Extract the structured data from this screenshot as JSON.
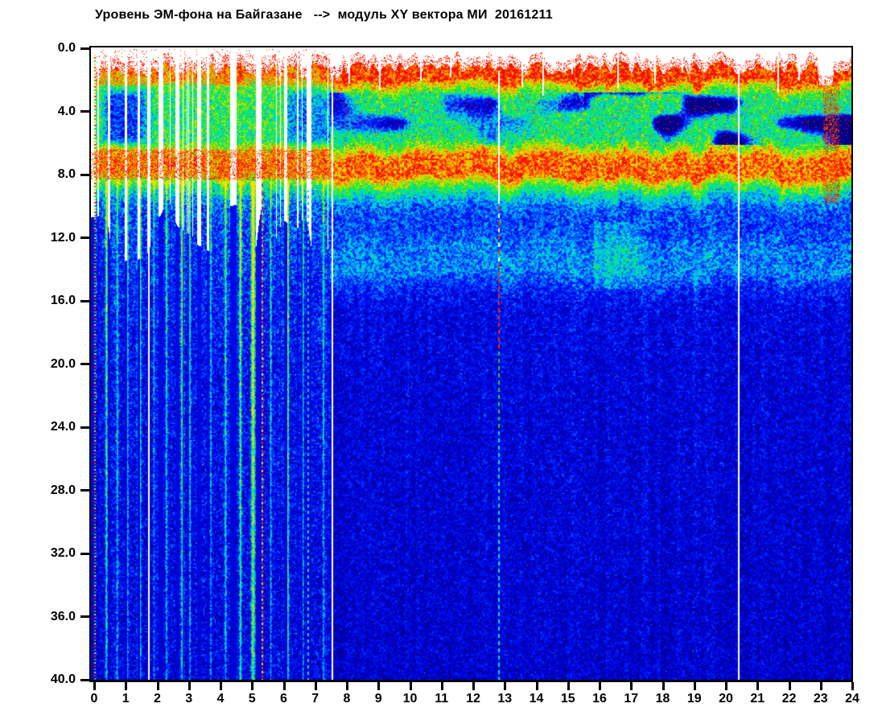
{
  "title": {
    "text": "Уровень ЭМ-фона на Байгазане   -->  модуль XY вектора МИ  20161211",
    "color": "#000000"
  },
  "axes": {
    "x": {
      "tick_labels": [
        "0",
        "1",
        "2",
        "3",
        "4",
        "5",
        "6",
        "7",
        "8",
        "9",
        "10",
        "11",
        "12",
        "13",
        "14",
        "15",
        "16",
        "17",
        "18",
        "19",
        "20",
        "21",
        "22",
        "23",
        "24"
      ],
      "min": 0,
      "max": 24
    },
    "y": {
      "tick_labels": [
        "0.0",
        "4.0",
        "8.0",
        "12.0",
        "16.0",
        "20.0",
        "24.0",
        "28.0",
        "32.0",
        "36.0",
        "40.0"
      ],
      "min": 0,
      "max": 40
    }
  },
  "chart_data": {
    "type": "heatmap",
    "title": "Уровень ЭМ-фона на Байгазане  -->  модуль XY вектора МИ  20161211",
    "date": "20161211",
    "x_range_hours": [
      0,
      24
    ],
    "y_range": [
      0,
      40
    ],
    "background": "#ffffff",
    "frame_color": "#000000",
    "colormap_stops": [
      [
        0.0,
        0,
        0,
        130
      ],
      [
        0.15,
        0,
        0,
        200
      ],
      [
        0.28,
        0,
        20,
        255
      ],
      [
        0.4,
        0,
        140,
        255
      ],
      [
        0.48,
        0,
        220,
        230
      ],
      [
        0.56,
        0,
        230,
        120
      ],
      [
        0.64,
        50,
        230,
        30
      ],
      [
        0.72,
        180,
        235,
        0
      ],
      [
        0.78,
        255,
        220,
        0
      ],
      [
        0.84,
        255,
        140,
        0
      ],
      [
        0.92,
        255,
        40,
        0
      ],
      [
        1.0,
        230,
        0,
        0
      ]
    ],
    "profile_continuous": [
      [
        0.75,
        0.93
      ],
      [
        2.0,
        0.92
      ],
      [
        2.6,
        0.7
      ],
      [
        3.1,
        0.58
      ],
      [
        5.7,
        0.56
      ],
      [
        6.3,
        0.7
      ],
      [
        6.9,
        0.87
      ],
      [
        8.1,
        0.88
      ],
      [
        8.7,
        0.66
      ],
      [
        9.4,
        0.48
      ],
      [
        10.3,
        0.34
      ],
      [
        11.6,
        0.32
      ],
      [
        12.6,
        0.385
      ],
      [
        14.2,
        0.4
      ],
      [
        15.2,
        0.28
      ],
      [
        16.5,
        0.21
      ],
      [
        22.0,
        0.185
      ],
      [
        40.0,
        0.16
      ]
    ],
    "profile_burst": [
      [
        0.85,
        0.88
      ],
      [
        1.9,
        0.8
      ],
      [
        2.5,
        0.63
      ],
      [
        4.0,
        0.58
      ],
      [
        5.9,
        0.6
      ],
      [
        6.5,
        0.78
      ],
      [
        7.5,
        0.85
      ],
      [
        8.2,
        0.74
      ],
      [
        8.9,
        0.55
      ],
      [
        9.6,
        0.4
      ],
      [
        10.6,
        0.33
      ],
      [
        12.5,
        0.3
      ],
      [
        15.0,
        0.27
      ],
      [
        20.0,
        0.235
      ],
      [
        30.0,
        0.21
      ],
      [
        40.0,
        0.195
      ]
    ],
    "burst_region_end_hour": 7.45,
    "burst_intervals": [
      [
        0.05,
        0.42
      ],
      [
        0.5,
        0.95
      ],
      [
        1.02,
        1.38
      ],
      [
        1.44,
        1.68
      ],
      [
        1.78,
        2.02
      ],
      [
        2.18,
        2.55
      ],
      [
        2.68,
        3.25
      ],
      [
        3.38,
        3.55
      ],
      [
        3.62,
        4.3
      ],
      [
        4.5,
        5.1
      ],
      [
        5.28,
        6.0
      ],
      [
        6.1,
        6.72
      ],
      [
        6.85,
        7.45
      ]
    ],
    "deep_streaks": [
      [
        0.38,
        0.45,
        1.6
      ],
      [
        0.72,
        0.28,
        1.2
      ],
      [
        1.05,
        0.3,
        1.2
      ],
      [
        1.42,
        0.52,
        2.6
      ],
      [
        1.88,
        0.25,
        1.2
      ],
      [
        2.28,
        0.34,
        1.4
      ],
      [
        2.78,
        0.48,
        2.0
      ],
      [
        3.02,
        0.36,
        1.3
      ],
      [
        3.68,
        0.28,
        1.2
      ],
      [
        4.15,
        0.34,
        1.5
      ],
      [
        4.62,
        0.47,
        1.6
      ],
      [
        5.02,
        0.62,
        2.8
      ],
      [
        5.58,
        0.32,
        1.2
      ],
      [
        6.12,
        0.46,
        1.6
      ],
      [
        6.6,
        0.33,
        1.2
      ],
      [
        7.25,
        0.28,
        1.2
      ]
    ],
    "vertical_lines": [
      {
        "name": "gap-line",
        "t": 1.72,
        "f0": 0.9,
        "width": 2,
        "color": "#ffffff"
      },
      {
        "name": "gap-line",
        "t": 7.55,
        "f0": 1.6,
        "width": 2,
        "color": "#ffffff"
      },
      {
        "name": "gap-line",
        "t": 20.42,
        "f0": 1.2,
        "width": 2,
        "color": "#ffffff"
      },
      {
        "name": "dotted-line",
        "t": 5.33,
        "f0": 7.9,
        "width": 2,
        "dash": [
          3,
          2
        ],
        "cycle": [
          "#ff2200",
          "#ffd000"
        ]
      },
      {
        "name": "dashed-line",
        "t": 6.78,
        "f0": 9.0,
        "width": 2,
        "dash": [
          4,
          4
        ],
        "palette": [
          [
            9.0,
            "#22dd22"
          ],
          [
            28.0,
            "#00cccc"
          ],
          [
            40.0,
            "#00e0e0"
          ]
        ]
      },
      {
        "name": "dashed-line",
        "t": 12.82,
        "f0": 1.4,
        "width": 2,
        "solid_white_to": 9.8,
        "dash": [
          5,
          4
        ],
        "alt_below_f": 13.5,
        "palette": [
          [
            9.8,
            "#ff4444"
          ],
          [
            19.0,
            "#ff2200"
          ],
          [
            24.0,
            "#22cc22"
          ],
          [
            40.0,
            "#00dddd"
          ]
        ]
      },
      {
        "name": "edge-dotted",
        "t": 0.015,
        "f0": 0.4,
        "width": 2,
        "dash": [
          2,
          2
        ],
        "cycle": [
          "#ff2200",
          "#22cc00",
          "#ffcc00"
        ]
      }
    ],
    "top_white_slits": [
      [
        8.05,
        2.2
      ],
      [
        9.02,
        2.6
      ],
      [
        10.32,
        2.0
      ],
      [
        11.25,
        1.8
      ],
      [
        13.52,
        2.4
      ],
      [
        14.2,
        3.0
      ],
      [
        15.1,
        1.6
      ],
      [
        16.55,
        2.5
      ],
      [
        17.72,
        2.2
      ],
      [
        18.6,
        1.5
      ],
      [
        21.62,
        2.8
      ],
      [
        22.3,
        2.0
      ],
      [
        23.05,
        2.3
      ]
    ],
    "render": {
      "red_band_f": [
        6.4,
        8.3
      ],
      "wave_patch_f": [
        2.8,
        6.1
      ],
      "wave_strong_after_hour": 15.5,
      "cyan_blob": {
        "t": [
          15.8,
          17.3
        ],
        "f": [
          11.0,
          15.2
        ],
        "boost": 0.08
      },
      "notch": {
        "t": [
          22.8,
          23.5
        ],
        "top_f": 2.3
      },
      "red_dip": {
        "t": [
          23.08,
          23.58
        ],
        "f": [
          1.8,
          9.8
        ],
        "prob": 0.4
      },
      "gap_fill_depth_base": 9.5,
      "speckle_amp": 0.26,
      "grain_amp": 0.16
    }
  }
}
